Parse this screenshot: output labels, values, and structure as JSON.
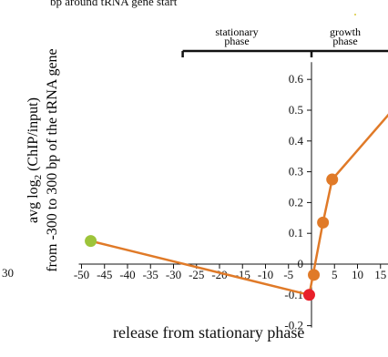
{
  "header": {
    "top_label": "bp around  tRNA gene start"
  },
  "footer": {
    "bottom_label": "release from stationary phase"
  },
  "left_edge": {
    "number": "30"
  },
  "phases": {
    "stationary": [
      "stationary",
      "phase"
    ],
    "growth": [
      "growth",
      "phase"
    ]
  },
  "chart_data": {
    "type": "line",
    "title": "",
    "ylabel_lines": [
      "avg  log2 (ChIP/input)",
      "from  -300  to  300 bp of  the tRNA gene"
    ],
    "ylabel_main": "avg  log",
    "ylabel_sub": "2",
    "ylabel_rest": " (ChIP/input)",
    "ylabel_line2": "from  -300  to  300 bp of  the tRNA gene",
    "xlabel": "",
    "xlim": [
      -50,
      17
    ],
    "ylim": [
      -0.2,
      0.65
    ],
    "x_ticks": [
      -50,
      -45,
      -40,
      -35,
      -30,
      -25,
      -20,
      -15,
      -10,
      -5,
      0,
      5,
      10,
      15
    ],
    "x_tick_labels": [
      "-50",
      "-45",
      "-40",
      "-35",
      "-30",
      "-25",
      "-20",
      "-15",
      "-10",
      "-5",
      "0",
      "5",
      "10",
      "15"
    ],
    "y_ticks": [
      -0.2,
      -0.1,
      0,
      0.1,
      0.2,
      0.3,
      0.4,
      0.5,
      0.6
    ],
    "y_tick_labels": [
      "-0.2",
      "-0.1",
      "0",
      "0.1",
      "0.2",
      "0.3",
      "0.4",
      "0.5",
      "0.6"
    ],
    "series": [
      {
        "color": "#e07a28",
        "line_width": 2.5,
        "x": [
          -48,
          -0.5,
          2.5,
          4.5,
          17
        ],
        "y": [
          0.075,
          -0.1,
          0.135,
          0.275,
          0.49
        ]
      }
    ],
    "points": [
      {
        "x": -48,
        "y": 0.075,
        "color": "#9dc43a"
      },
      {
        "x": -0.5,
        "y": -0.1,
        "color": "#e8202a"
      },
      {
        "x": 0.5,
        "y": -0.035,
        "color": "#e07a28"
      },
      {
        "x": 2.5,
        "y": 0.135,
        "color": "#e07a28"
      },
      {
        "x": 4.5,
        "y": 0.275,
        "color": "#e07a28"
      }
    ],
    "phase_brackets": [
      {
        "label": "stationary phase",
        "x_start": -28,
        "x_end": 0
      },
      {
        "label": "growth phase",
        "x_start": 0,
        "x_end": 17
      }
    ],
    "legend": "none",
    "grid": false
  }
}
